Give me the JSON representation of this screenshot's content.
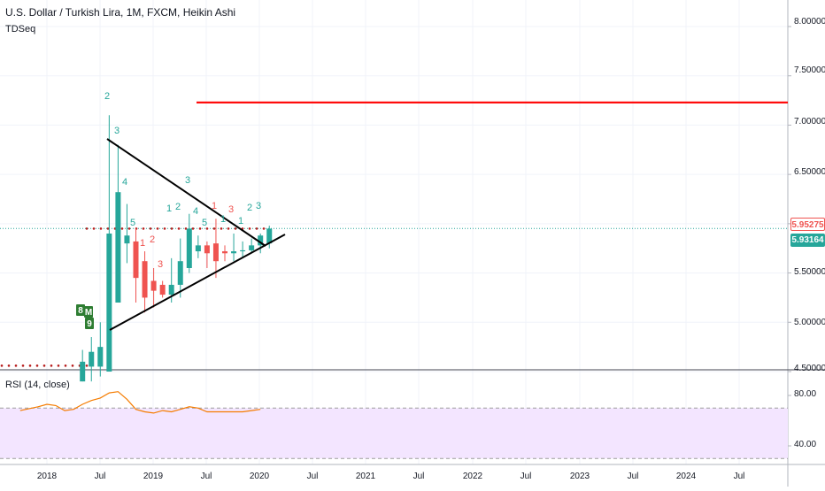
{
  "header": {
    "title": "U.S. Dollar / Turkish Lira, 1M, FXCM, Heikin Ashi",
    "indicator": "TDSeq"
  },
  "rsi": {
    "label": "RSI (14, close)"
  },
  "price_axis": {
    "ticks": [
      "8.00000",
      "7.50000",
      "7.00000",
      "6.50000",
      "6.00000",
      "5.50000",
      "5.00000",
      "4.50000"
    ],
    "last_price_red": "5.95275",
    "last_price_green": "5.93164"
  },
  "rsi_axis": {
    "ticks": [
      "80.00",
      "40.00"
    ]
  },
  "time_axis": {
    "ticks": [
      "2018",
      "Jul",
      "2019",
      "Jul",
      "2020",
      "Jul",
      "2021",
      "Jul",
      "2022",
      "Jul",
      "2023",
      "Jul",
      "2024",
      "Jul"
    ]
  },
  "colors": {
    "bull": "#26a69a",
    "bear": "#ef5350",
    "resistance": "#ff0000",
    "trendline": "#000000",
    "rsi_line": "#f57c00",
    "rsi_band": "#f3e5ff"
  },
  "markers": [
    {
      "text": "2",
      "color": "bull"
    },
    {
      "text": "3",
      "color": "bull"
    },
    {
      "text": "4",
      "color": "bull"
    },
    {
      "text": "5",
      "color": "bull"
    },
    {
      "text": "1",
      "color": "bear"
    },
    {
      "text": "2",
      "color": "bear"
    },
    {
      "text": "3",
      "color": "bear"
    },
    {
      "text": "2",
      "color": "bull"
    },
    {
      "text": "4",
      "color": "bull"
    },
    {
      "text": "3",
      "color": "bull"
    },
    {
      "text": "1",
      "color": "bull"
    },
    {
      "text": "5",
      "color": "bull"
    },
    {
      "text": "1",
      "color": "bear"
    },
    {
      "text": "3",
      "color": "bear"
    },
    {
      "text": "2",
      "color": "bull"
    },
    {
      "text": "3",
      "color": "bull"
    },
    {
      "text": "1",
      "color": "bull"
    },
    {
      "text": "1",
      "color": "bull"
    }
  ],
  "setup_flags": [
    "8",
    "M",
    "9"
  ],
  "chart_data": {
    "type": "candlestick",
    "title": "U.S. Dollar / Turkish Lira, 1M, FXCM, Heikin Ashi",
    "x_unit": "month",
    "ylim": [
      4.44,
      8.15
    ],
    "candles": [
      {
        "t": "2018-05",
        "o": 4.4,
        "h": 4.72,
        "l": 4.4,
        "c": 4.6
      },
      {
        "t": "2018-06",
        "o": 4.55,
        "h": 4.85,
        "l": 4.4,
        "c": 4.7
      },
      {
        "t": "2018-07",
        "o": 4.55,
        "h": 5.0,
        "l": 4.45,
        "c": 4.75
      },
      {
        "t": "2018-08",
        "o": 4.5,
        "h": 7.1,
        "l": 4.5,
        "c": 5.9
      },
      {
        "t": "2018-09",
        "o": 5.2,
        "h": 6.8,
        "l": 5.2,
        "c": 6.32
      },
      {
        "t": "2018-10",
        "o": 5.8,
        "h": 6.2,
        "l": 5.6,
        "c": 5.88
      },
      {
        "t": "2018-11",
        "o": 5.82,
        "h": 5.95,
        "l": 5.2,
        "c": 5.45
      },
      {
        "t": "2018-12",
        "o": 5.62,
        "h": 5.72,
        "l": 5.1,
        "c": 5.25
      },
      {
        "t": "2019-01",
        "o": 5.42,
        "h": 5.55,
        "l": 5.15,
        "c": 5.32
      },
      {
        "t": "2019-02",
        "o": 5.38,
        "h": 5.42,
        "l": 5.25,
        "c": 5.28
      },
      {
        "t": "2019-03",
        "o": 5.28,
        "h": 5.65,
        "l": 5.2,
        "c": 5.38
      },
      {
        "t": "2019-04",
        "o": 5.38,
        "h": 5.85,
        "l": 5.25,
        "c": 5.62
      },
      {
        "t": "2019-05",
        "o": 5.55,
        "h": 6.1,
        "l": 5.5,
        "c": 5.95
      },
      {
        "t": "2019-06",
        "o": 5.72,
        "h": 5.88,
        "l": 5.65,
        "c": 5.78
      },
      {
        "t": "2019-07",
        "o": 5.78,
        "h": 5.82,
        "l": 5.55,
        "c": 5.7
      },
      {
        "t": "2019-08",
        "o": 5.8,
        "h": 6.05,
        "l": 5.45,
        "c": 5.62
      },
      {
        "t": "2019-09",
        "o": 5.72,
        "h": 5.78,
        "l": 5.62,
        "c": 5.7
      },
      {
        "t": "2019-10",
        "o": 5.7,
        "h": 5.9,
        "l": 5.62,
        "c": 5.72
      },
      {
        "t": "2019-11",
        "o": 5.72,
        "h": 5.82,
        "l": 5.66,
        "c": 5.73
      },
      {
        "t": "2019-12",
        "o": 5.73,
        "h": 5.85,
        "l": 5.7,
        "c": 5.78
      },
      {
        "t": "2020-01",
        "o": 5.78,
        "h": 5.9,
        "l": 5.7,
        "c": 5.88
      },
      {
        "t": "2020-02",
        "o": 5.8,
        "h": 5.98,
        "l": 5.75,
        "c": 5.95
      }
    ],
    "resistance_level": 7.23,
    "support_dots_level": 4.56,
    "tdst_dots_level": 5.95,
    "rsi": {
      "ylim": [
        28,
        95
      ],
      "band": [
        30,
        70
      ],
      "values": [
        {
          "t": "2017-10",
          "v": 68
        },
        {
          "t": "2017-12",
          "v": 71
        },
        {
          "t": "2018-01",
          "v": 73
        },
        {
          "t": "2018-02",
          "v": 72
        },
        {
          "t": "2018-03",
          "v": 68
        },
        {
          "t": "2018-04",
          "v": 69
        },
        {
          "t": "2018-05",
          "v": 73
        },
        {
          "t": "2018-06",
          "v": 76
        },
        {
          "t": "2018-07",
          "v": 78
        },
        {
          "t": "2018-08",
          "v": 82
        },
        {
          "t": "2018-09",
          "v": 83
        },
        {
          "t": "2018-10",
          "v": 77
        },
        {
          "t": "2018-11",
          "v": 69
        },
        {
          "t": "2018-12",
          "v": 67
        },
        {
          "t": "2019-01",
          "v": 66
        },
        {
          "t": "2019-02",
          "v": 68
        },
        {
          "t": "2019-03",
          "v": 67
        },
        {
          "t": "2019-04",
          "v": 69
        },
        {
          "t": "2019-05",
          "v": 71
        },
        {
          "t": "2019-06",
          "v": 70
        },
        {
          "t": "2019-07",
          "v": 67
        },
        {
          "t": "2019-08",
          "v": 67
        },
        {
          "t": "2019-09",
          "v": 67
        },
        {
          "t": "2019-10",
          "v": 67
        },
        {
          "t": "2019-11",
          "v": 67
        },
        {
          "t": "2019-12",
          "v": 68
        },
        {
          "t": "2020-01",
          "v": 69
        }
      ]
    }
  }
}
